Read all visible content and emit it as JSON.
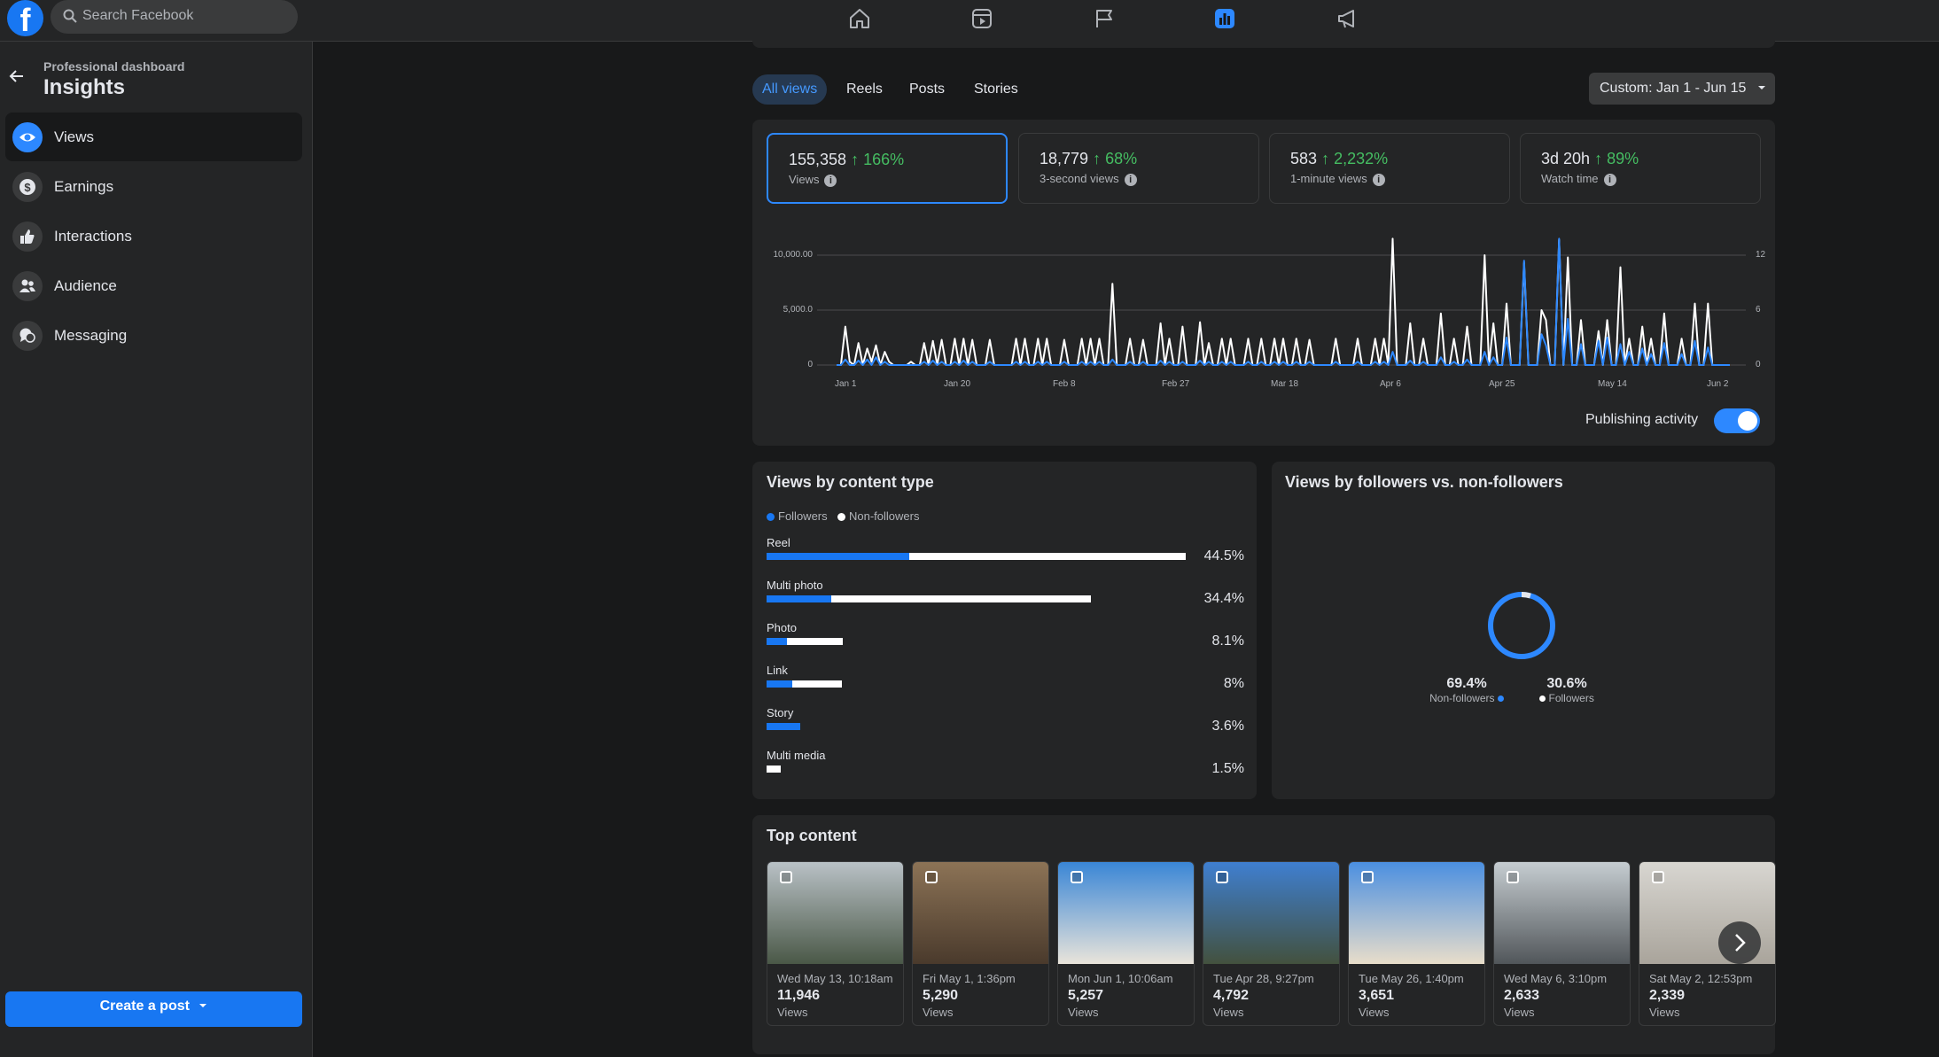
{
  "topbar": {
    "logo": "f",
    "search_placeholder": "Search Facebook",
    "nav_icons": [
      "home-icon",
      "video-icon",
      "flag-icon",
      "insights-icon",
      "megaphone-icon"
    ],
    "active_nav": "insights-icon"
  },
  "sidebar": {
    "subtitle": "Professional dashboard",
    "title": "Insights",
    "items": [
      {
        "label": "Views",
        "icon": "eye-icon",
        "active": true
      },
      {
        "label": "Earnings",
        "icon": "dollar-icon",
        "active": false
      },
      {
        "label": "Interactions",
        "icon": "thumbs-up-icon",
        "active": false
      },
      {
        "label": "Audience",
        "icon": "people-icon",
        "active": false
      },
      {
        "label": "Messaging",
        "icon": "chat-icon",
        "active": false
      }
    ],
    "create_post": "Create a post"
  },
  "filters": {
    "tabs": [
      "All views",
      "Reels",
      "Posts",
      "Stories"
    ],
    "active_tab": "All views",
    "date_range": "Custom: Jan 1 - Jun 15"
  },
  "metrics": [
    {
      "value": "155,358",
      "change": "↑ 166%",
      "label": "Views",
      "selected": true
    },
    {
      "value": "18,779",
      "change": "↑ 68%",
      "label": "3-second views",
      "selected": false
    },
    {
      "value": "583",
      "change": "↑ 2,232%",
      "label": "1-minute views",
      "selected": false
    },
    {
      "value": "3d 20h",
      "change": "↑ 89%",
      "label": "Watch time",
      "selected": false
    }
  ],
  "chart_data": [
    {
      "type": "line",
      "x_ticks": [
        "Jan 1",
        "Jan 20",
        "Feb 8",
        "Feb 27",
        "Mar 18",
        "Apr 6",
        "Apr 25",
        "May 14",
        "Jun 2"
      ],
      "y_ticks_left": [
        "10,000.00",
        "5,000.0",
        "0"
      ],
      "y_ticks_right": [
        "12",
        "6",
        "0"
      ],
      "ylim": [
        0,
        10000
      ],
      "ylim_right": [
        0,
        12
      ],
      "series": [
        {
          "color": "#ffffff",
          "values": [
            0,
            0,
            3500,
            300,
            0,
            2000,
            0,
            1500,
            300,
            1800,
            0,
            1200,
            300,
            0,
            0,
            0,
            0,
            300,
            0,
            0,
            2000,
            0,
            2200,
            0,
            2300,
            0,
            0,
            2400,
            0,
            2400,
            0,
            2300,
            0,
            0,
            0,
            2300,
            0,
            0,
            0,
            0,
            0,
            2400,
            0,
            2400,
            0,
            0,
            2400,
            0,
            2400,
            0,
            0,
            0,
            2300,
            0,
            0,
            0,
            2400,
            0,
            2400,
            0,
            2400,
            0,
            0,
            7400,
            0,
            0,
            0,
            2400,
            0,
            0,
            2300,
            0,
            0,
            0,
            3800,
            0,
            2400,
            0,
            0,
            3500,
            0,
            0,
            0,
            3900,
            0,
            2000,
            0,
            0,
            2400,
            0,
            2400,
            0,
            0,
            0,
            2400,
            0,
            0,
            2400,
            0,
            0,
            2400,
            0,
            2400,
            0,
            0,
            2400,
            0,
            0,
            2300,
            0,
            0,
            0,
            0,
            0,
            2400,
            0,
            0,
            0,
            0,
            2400,
            0,
            0,
            0,
            2400,
            0,
            2400,
            0,
            11500,
            0,
            0,
            0,
            3800,
            0,
            0,
            2400,
            0,
            0,
            0,
            4700,
            0,
            0,
            2400,
            0,
            0,
            3500,
            0,
            0,
            0,
            10000,
            0,
            3800,
            0,
            0,
            5600,
            0,
            0,
            0,
            9300,
            0,
            0,
            0,
            5000,
            4100,
            0,
            0,
            11400,
            0,
            9800,
            0,
            0,
            4100,
            0,
            0,
            0,
            3100,
            0,
            4100,
            0,
            0,
            8900,
            0,
            2400,
            0,
            0,
            3500,
            0,
            2400,
            0,
            0,
            4700,
            0,
            0,
            0,
            2400,
            0,
            0,
            5600,
            0,
            0,
            5600,
            0,
            0,
            0,
            0,
            0
          ]
        },
        {
          "color": "#2d88ff",
          "values": [
            0,
            0,
            500,
            0,
            0,
            400,
            0,
            500,
            0,
            700,
            0,
            300,
            0,
            0,
            0,
            0,
            0,
            0,
            0,
            0,
            300,
            0,
            400,
            0,
            300,
            0,
            0,
            300,
            0,
            400,
            0,
            300,
            0,
            0,
            0,
            300,
            0,
            0,
            0,
            0,
            0,
            300,
            0,
            300,
            0,
            0,
            300,
            0,
            300,
            0,
            0,
            0,
            300,
            0,
            0,
            0,
            300,
            0,
            300,
            0,
            300,
            0,
            0,
            500,
            0,
            0,
            0,
            300,
            0,
            0,
            300,
            0,
            0,
            0,
            400,
            0,
            300,
            0,
            0,
            300,
            0,
            0,
            0,
            400,
            0,
            300,
            0,
            0,
            300,
            0,
            300,
            0,
            0,
            0,
            300,
            0,
            0,
            300,
            0,
            0,
            300,
            0,
            300,
            0,
            0,
            300,
            0,
            0,
            300,
            0,
            0,
            0,
            0,
            0,
            300,
            0,
            0,
            0,
            0,
            300,
            0,
            0,
            0,
            300,
            0,
            300,
            0,
            1200,
            0,
            0,
            0,
            400,
            0,
            0,
            300,
            0,
            0,
            0,
            700,
            0,
            0,
            300,
            0,
            0,
            500,
            0,
            0,
            0,
            1200,
            0,
            700,
            0,
            0,
            2500,
            0,
            0,
            0,
            9500,
            0,
            0,
            0,
            2800,
            1800,
            0,
            0,
            11500,
            0,
            4200,
            0,
            0,
            1900,
            0,
            0,
            0,
            2200,
            0,
            2500,
            0,
            0,
            1900,
            0,
            1200,
            0,
            0,
            1500,
            0,
            1000,
            0,
            0,
            2000,
            0,
            0,
            0,
            1000,
            0,
            0,
            2200,
            0,
            0,
            1600,
            0,
            0,
            0,
            0,
            0
          ]
        }
      ]
    },
    {
      "type": "bar",
      "title": "Views by content type",
      "legend": [
        "Followers",
        "Non-followers"
      ],
      "categories": [
        "Reel",
        "Multi photo",
        "Photo",
        "Link",
        "Story",
        "Multi media"
      ],
      "values": [
        44.5,
        34.4,
        8.1,
        8,
        3.6,
        1.5
      ],
      "value_labels": [
        "44.5%",
        "34.4%",
        "8.1%",
        "8%",
        "3.6%",
        "1.5%"
      ],
      "followers_share": [
        0.34,
        0.2,
        0.27,
        0.34,
        1.0,
        0.0
      ]
    },
    {
      "type": "pie",
      "title": "Views by followers vs. non-followers",
      "categories": [
        "Non-followers",
        "Followers"
      ],
      "values": [
        69.4,
        30.6
      ],
      "value_labels": [
        "69.4%",
        "30.6%"
      ]
    }
  ],
  "toggle": {
    "label": "Publishing activity",
    "on": true
  },
  "top_content": {
    "title": "Top content",
    "views_label": "Views",
    "items": [
      {
        "date": "Wed May 13, 10:18am",
        "views": "11,946",
        "colors": [
          "#b9c1c6",
          "#4a5847"
        ]
      },
      {
        "date": "Fri May 1, 1:36pm",
        "views": "5,290",
        "colors": [
          "#8c7356",
          "#4a3a2c"
        ]
      },
      {
        "date": "Mon Jun 1, 10:06am",
        "views": "5,257",
        "colors": [
          "#3a86d6",
          "#e9e4da"
        ]
      },
      {
        "date": "Tue Apr 28, 9:27pm",
        "views": "4,792",
        "colors": [
          "#3f7fd0",
          "#43513e"
        ]
      },
      {
        "date": "Tue May 26, 1:40pm",
        "views": "3,651",
        "colors": [
          "#4b8fe0",
          "#e8ddca"
        ]
      },
      {
        "date": "Wed May 6, 3:10pm",
        "views": "2,633",
        "colors": [
          "#c6cdd1",
          "#51565a"
        ]
      },
      {
        "date": "Sat May 2, 12:53pm",
        "views": "2,339",
        "colors": [
          "#d8d6d1",
          "#a9a49b"
        ]
      }
    ]
  }
}
